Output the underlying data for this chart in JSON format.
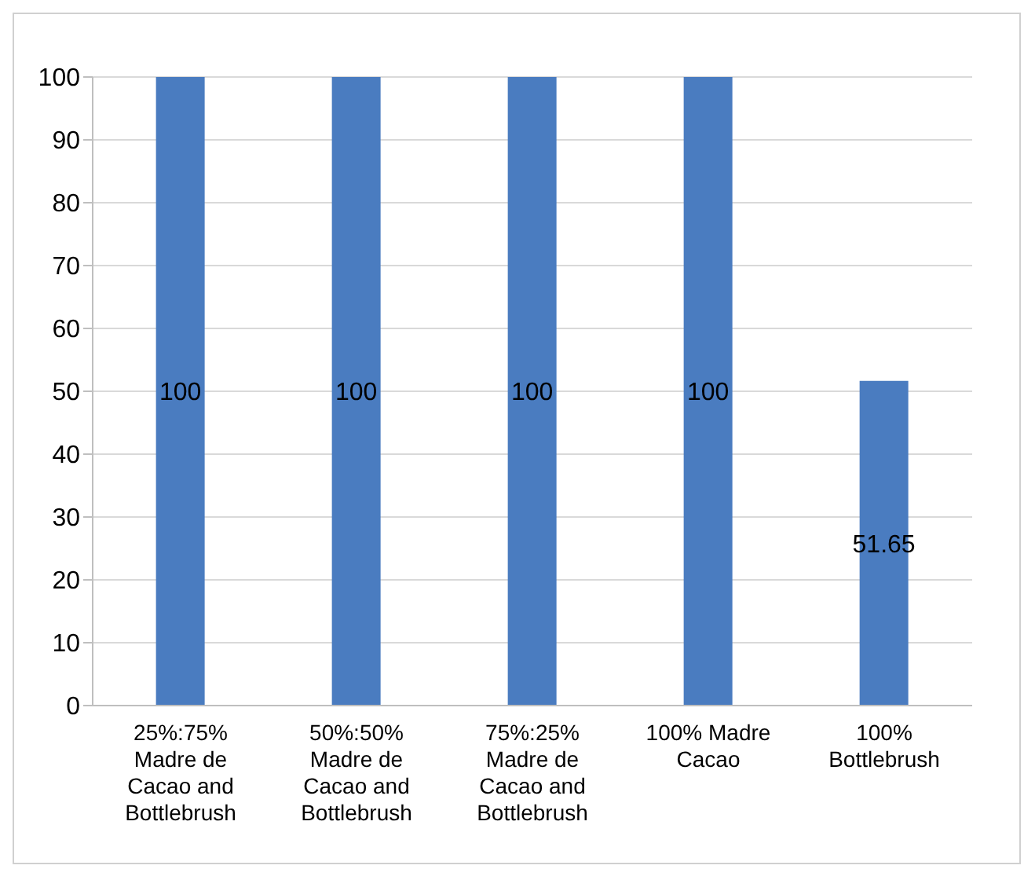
{
  "chart_data": {
    "type": "bar",
    "categories": [
      "25%:75% Madre de Cacao and Bottlebrush",
      "50%:50% Madre de Cacao and Bottlebrush",
      "75%:25% Madre de Cacao and Bottlebrush",
      "100% Madre Cacao",
      "100% Bottlebrush"
    ],
    "values": [
      100,
      100,
      100,
      100,
      51.65
    ],
    "color": "#4a7cc0",
    "ylim": [
      0,
      100
    ],
    "yticks": [
      0,
      10,
      20,
      30,
      40,
      50,
      60,
      70,
      80,
      90,
      100
    ],
    "grid": "y",
    "data_labels": true
  }
}
